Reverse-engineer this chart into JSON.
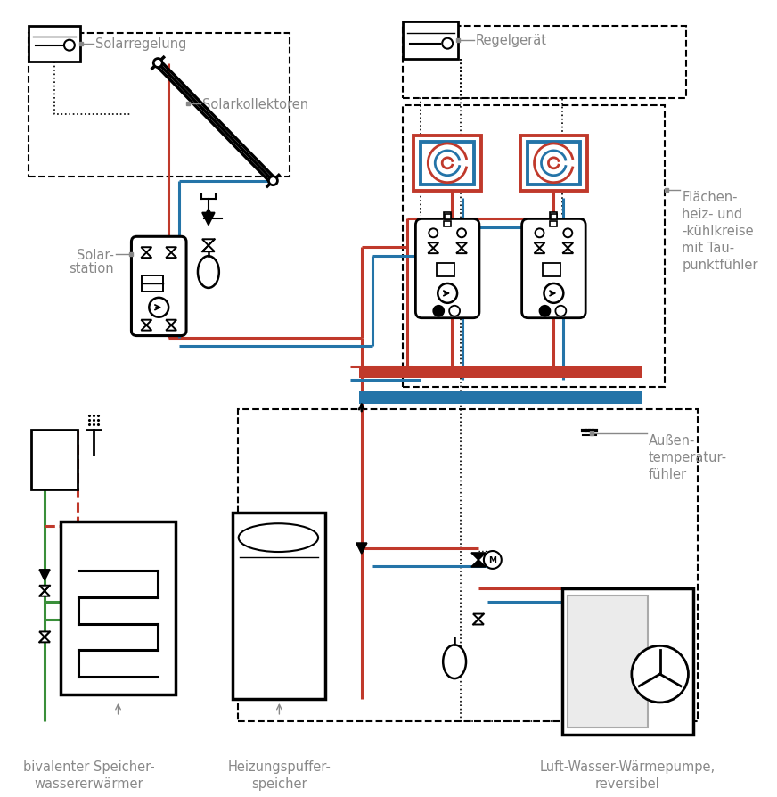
{
  "bg_color": "#ffffff",
  "red": "#c0392b",
  "blue": "#2474a8",
  "green": "#3a8f3a",
  "black": "#1a1a1a",
  "gray_text": "#888888",
  "light_gray": "#aaaaaa",
  "labels": {
    "solarregelung": "Solarregelung",
    "solarkollektoren": "Solarkollektoren",
    "solarstation_line1": "Solar-",
    "solarstation_line2": "station",
    "regelgeraet": "Regelgerät",
    "flaechenheiz": "Flächen-\nheiz- und\n-kühlkreise\nmit Tau-\npunktfühler",
    "aussentemperatur": "Außen-\ntemperatur-\nfühler",
    "bivalenter": "bivalenter Speicher-\nwassererwärmer",
    "heizungspuffer": "Heizungspuffer-\nspeicher",
    "luftwasser": "Luft-Wasser-Wärmepumpe,\nreversibel"
  }
}
